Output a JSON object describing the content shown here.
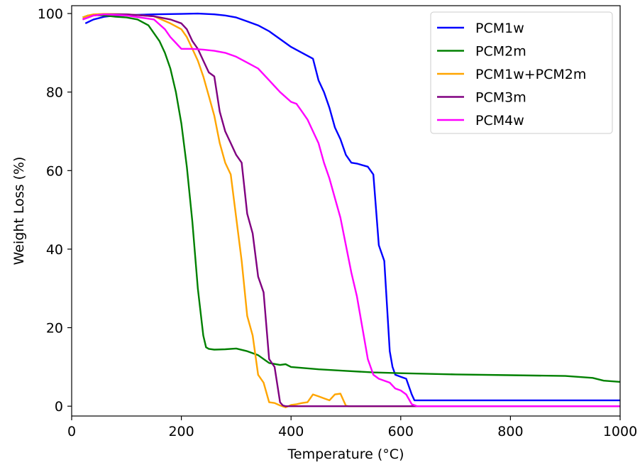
{
  "chart_data": {
    "type": "line",
    "title": "",
    "xlabel": "Temperature (°C)",
    "ylabel": "Weight Loss (%)",
    "xlim": [
      0,
      1000
    ],
    "ylim": [
      -2.5,
      102
    ],
    "xticks": [
      "0",
      "200",
      "400",
      "600",
      "800",
      "1000"
    ],
    "yticks": [
      "0",
      "20",
      "40",
      "60",
      "80",
      "100"
    ],
    "grid": false,
    "legend_position": "top-right",
    "series": [
      {
        "name": "PCM1w",
        "color": "#0000ff",
        "x": [
          25,
          40,
          60,
          80,
          100,
          150,
          200,
          230,
          260,
          280,
          300,
          320,
          340,
          360,
          380,
          400,
          420,
          440,
          450,
          460,
          470,
          480,
          490,
          500,
          510,
          520,
          540,
          550,
          560,
          570,
          580,
          585,
          590,
          600,
          610,
          620,
          625,
          650,
          700,
          800,
          900,
          1000
        ],
        "y": [
          97.5,
          98.5,
          99.2,
          99.5,
          99.6,
          99.8,
          99.9,
          100,
          99.8,
          99.5,
          99,
          98,
          97,
          95.5,
          93.5,
          91.5,
          90,
          88.5,
          83,
          80,
          76,
          71,
          68,
          64,
          62,
          61.8,
          61,
          59,
          41,
          37,
          14,
          10,
          8,
          7.5,
          7,
          3,
          1.5,
          1.5,
          1.5,
          1.5,
          1.5,
          1.5
        ]
      },
      {
        "name": "PCM2m",
        "color": "#008000",
        "x": [
          20,
          30,
          40,
          60,
          80,
          100,
          120,
          140,
          160,
          170,
          180,
          190,
          200,
          210,
          220,
          230,
          240,
          245,
          250,
          260,
          280,
          300,
          320,
          340,
          360,
          380,
          390,
          400,
          450,
          500,
          550,
          600,
          700,
          800,
          900,
          950,
          970,
          1000
        ],
        "y": [
          99,
          99.5,
          99.6,
          99.5,
          99.2,
          99,
          98.5,
          97,
          93,
          90,
          86,
          80,
          72,
          61,
          47,
          30,
          18,
          15,
          14.6,
          14.4,
          14.5,
          14.7,
          14,
          13,
          11,
          10.5,
          10.7,
          10,
          9.4,
          9,
          8.6,
          8.4,
          8.1,
          7.9,
          7.7,
          7.2,
          6.5,
          6.2
        ]
      },
      {
        "name": "PCM1w+PCM2m",
        "color": "#ffa500",
        "x": [
          20,
          30,
          40,
          60,
          100,
          150,
          180,
          200,
          210,
          220,
          230,
          240,
          250,
          260,
          270,
          280,
          290,
          300,
          310,
          320,
          330,
          340,
          350,
          360,
          370,
          380,
          390,
          395,
          400,
          410,
          420,
          430,
          440,
          450,
          460,
          470,
          480,
          490,
          500,
          505,
          510,
          600,
          1000
        ],
        "y": [
          99,
          99.5,
          99.8,
          99.9,
          99.8,
          99.3,
          97.5,
          96,
          94,
          91,
          88,
          84,
          79,
          74,
          67,
          62,
          59,
          48,
          37,
          23,
          18,
          8,
          6,
          1,
          0.8,
          0.2,
          -0.3,
          0,
          0.3,
          0.5,
          0.8,
          1,
          3,
          2.5,
          2,
          1.5,
          3,
          3.2,
          0.1,
          0,
          0,
          0,
          0
        ]
      },
      {
        "name": "PCM3m",
        "color": "#800080",
        "x": [
          20,
          30,
          40,
          60,
          100,
          150,
          180,
          200,
          210,
          220,
          230,
          240,
          250,
          260,
          270,
          280,
          290,
          300,
          310,
          320,
          330,
          340,
          350,
          360,
          370,
          380,
          385,
          390,
          400,
          500,
          600,
          1000
        ],
        "y": [
          98.5,
          99,
          99.5,
          99.8,
          99.8,
          99.3,
          98.5,
          97.5,
          96,
          93,
          91,
          88,
          85,
          84,
          75,
          70,
          67,
          64,
          62,
          49,
          44,
          33,
          29,
          12,
          10,
          1,
          0.2,
          0,
          0,
          0,
          0,
          0
        ]
      },
      {
        "name": "PCM4w",
        "color": "#ff00ff",
        "x": [
          20,
          30,
          40,
          60,
          100,
          150,
          170,
          180,
          190,
          200,
          220,
          240,
          260,
          280,
          300,
          320,
          340,
          360,
          380,
          400,
          410,
          420,
          430,
          440,
          450,
          460,
          470,
          480,
          490,
          500,
          510,
          520,
          530,
          540,
          550,
          560,
          570,
          580,
          590,
          600,
          610,
          620,
          630,
          700,
          1000
        ],
        "y": [
          98.5,
          99,
          99.5,
          99.8,
          99.5,
          98.5,
          96,
          94,
          92.5,
          91,
          91,
          90.8,
          90.5,
          90,
          89,
          87.5,
          86,
          83,
          80,
          77.5,
          77,
          75,
          73,
          70,
          67,
          62,
          58,
          53,
          48,
          41,
          34,
          28,
          20,
          12,
          8,
          7,
          6.5,
          6,
          4.5,
          4,
          3,
          0.5,
          0,
          0,
          0
        ]
      }
    ]
  }
}
